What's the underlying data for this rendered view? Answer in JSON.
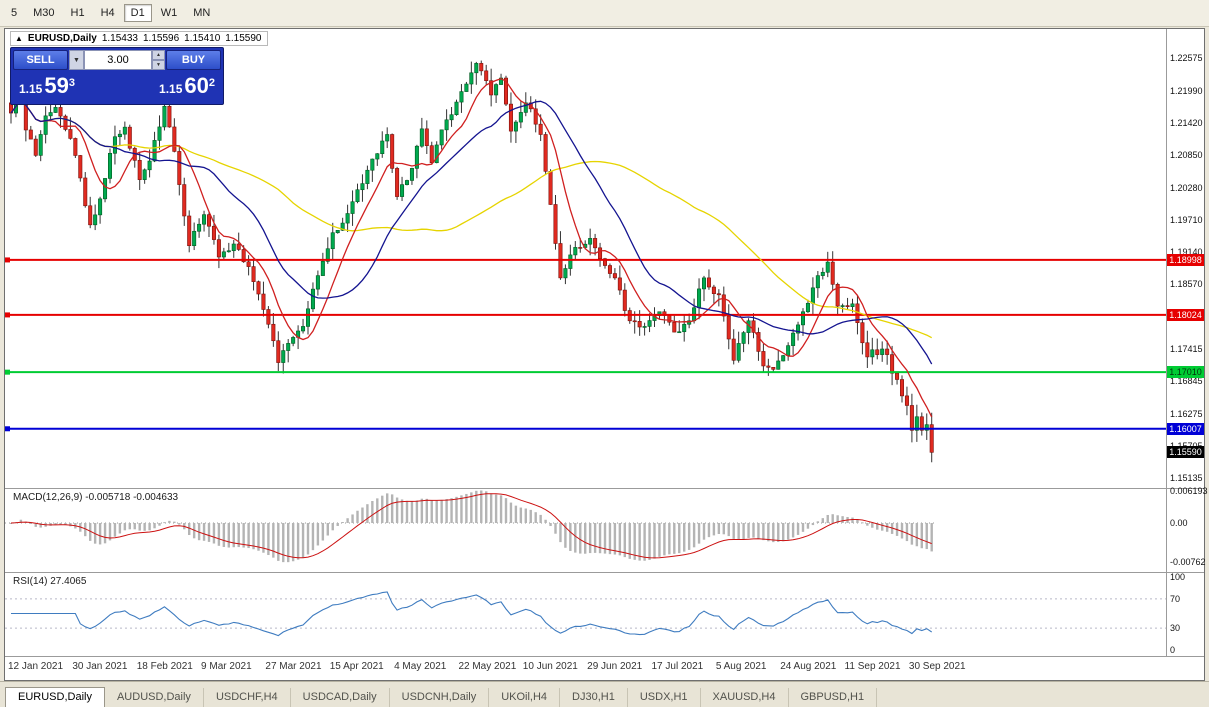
{
  "toolbar": {
    "timeframes": [
      "5",
      "M30",
      "H1",
      "H4",
      "D1",
      "W1",
      "MN"
    ],
    "active": "D1"
  },
  "chart_header": {
    "icon": "▲",
    "symbol": "EURUSD,Daily",
    "open": "1.15433",
    "high": "1.15596",
    "low": "1.15410",
    "close": "1.15590"
  },
  "trade_panel": {
    "sell": "SELL",
    "buy": "BUY",
    "volume": "3.00",
    "bid_prefix": "1.15",
    "bid_big": "59",
    "bid_sup": "3",
    "ask_prefix": "1.15",
    "ask_big": "60",
    "ask_sup": "2"
  },
  "chart_data": {
    "type": "candlestick",
    "symbol": "EURUSD",
    "period": "Daily",
    "price_ticks": [
      "1.22575",
      "1.21990",
      "1.21420",
      "1.20850",
      "1.20280",
      "1.19710",
      "1.19140",
      "1.18570",
      "1.17415",
      "1.16845",
      "1.16275",
      "1.15705",
      "1.15135"
    ],
    "price_tick_values": [
      1.22575,
      1.2199,
      1.2142,
      1.2085,
      1.2028,
      1.1971,
      1.1914,
      1.1857,
      1.17415,
      1.16845,
      1.16275,
      1.15705,
      1.15135
    ],
    "hlines": [
      {
        "price": 1.18998,
        "label": "1.18998",
        "color": "#e60000",
        "text_color": "#ffffff"
      },
      {
        "price": 1.18024,
        "label": "1.18024",
        "color": "#e60000",
        "text_color": "#ffffff"
      },
      {
        "price": 1.1701,
        "label": "1.17010",
        "color": "#00cc33",
        "text_color": "#00330d"
      },
      {
        "price": 1.16007,
        "label": "1.16007",
        "color": "#0000d6",
        "text_color": "#ffffff"
      }
    ],
    "last_price": {
      "price": 1.1559,
      "label": "1.15590",
      "color": "#000000",
      "text_color": "#ffffff"
    },
    "dates": {
      "labels": [
        "12 Jan 2021",
        "30 Jan 2021",
        "18 Feb 2021",
        "9 Mar 2021",
        "27 Mar 2021",
        "15 Apr 2021",
        "4 May 2021",
        "22 May 2021",
        "10 Jun 2021",
        "29 Jun 2021",
        "17 Jul 2021",
        "5 Aug 2021",
        "24 Aug 2021",
        "11 Sep 2021",
        "30 Sep 2021"
      ],
      "days": [
        0,
        13,
        26,
        39,
        52,
        65,
        78,
        91,
        104,
        117,
        130,
        143,
        156,
        169,
        182
      ]
    },
    "bars": 187,
    "anchors": [
      [
        0,
        1.216
      ],
      [
        2,
        1.2222
      ],
      [
        3,
        1.213
      ],
      [
        5,
        1.2085
      ],
      [
        7,
        1.2155
      ],
      [
        9,
        1.217
      ],
      [
        12,
        1.2115
      ],
      [
        14,
        1.2045
      ],
      [
        16,
        1.1962
      ],
      [
        18,
        1.2008
      ],
      [
        21,
        1.2118
      ],
      [
        23,
        1.2135
      ],
      [
        26,
        1.2042
      ],
      [
        28,
        1.2075
      ],
      [
        31,
        1.2172
      ],
      [
        33,
        1.2092
      ],
      [
        36,
        1.1925
      ],
      [
        39,
        1.198
      ],
      [
        42,
        1.1905
      ],
      [
        45,
        1.1928
      ],
      [
        48,
        1.1888
      ],
      [
        51,
        1.1812
      ],
      [
        54,
        1.1718
      ],
      [
        56,
        1.1752
      ],
      [
        59,
        1.1782
      ],
      [
        62,
        1.1872
      ],
      [
        65,
        1.1948
      ],
      [
        68,
        1.1982
      ],
      [
        71,
        1.2035
      ],
      [
        74,
        1.2088
      ],
      [
        76,
        1.2122
      ],
      [
        78,
        1.2012
      ],
      [
        81,
        1.2062
      ],
      [
        83,
        1.2132
      ],
      [
        85,
        1.2072
      ],
      [
        88,
        1.2148
      ],
      [
        91,
        1.2198
      ],
      [
        94,
        1.2248
      ],
      [
        97,
        1.2192
      ],
      [
        99,
        1.2222
      ],
      [
        101,
        1.2128
      ],
      [
        104,
        1.2178
      ],
      [
        107,
        1.2122
      ],
      [
        109,
        1.1998
      ],
      [
        111,
        1.1868
      ],
      [
        114,
        1.1922
      ],
      [
        117,
        1.1938
      ],
      [
        119,
        1.1902
      ],
      [
        122,
        1.1868
      ],
      [
        125,
        1.1792
      ],
      [
        128,
        1.1782
      ],
      [
        131,
        1.1808
      ],
      [
        134,
        1.1772
      ],
      [
        137,
        1.1792
      ],
      [
        140,
        1.1868
      ],
      [
        143,
        1.1838
      ],
      [
        146,
        1.1722
      ],
      [
        149,
        1.1792
      ],
      [
        152,
        1.1712
      ],
      [
        154,
        1.1706
      ],
      [
        157,
        1.1748
      ],
      [
        160,
        1.1808
      ],
      [
        163,
        1.1872
      ],
      [
        165,
        1.1896
      ],
      [
        167,
        1.1818
      ],
      [
        170,
        1.1822
      ],
      [
        173,
        1.1728
      ],
      [
        176,
        1.1742
      ],
      [
        179,
        1.1688
      ],
      [
        181,
        1.1642
      ],
      [
        182,
        1.1598
      ],
      [
        183,
        1.1622
      ],
      [
        184,
        1.1598
      ],
      [
        185,
        1.1608
      ],
      [
        186,
        1.1559
      ]
    ],
    "candle_colors": {
      "up": "#00a94f",
      "up_stroke": "#005a20",
      "down": "#e02a20",
      "down_stroke": "#7a100c",
      "wick": "#333333"
    },
    "moving_averages": [
      {
        "period": 8,
        "color": "#d02020"
      },
      {
        "period": 21,
        "color": "#141490"
      },
      {
        "period": 55,
        "color": "#e6d400"
      }
    ],
    "macd": {
      "label": "MACD(12,26,9) -0.005718 -0.004633",
      "fast": 12,
      "slow": 26,
      "signal": 9,
      "value": -0.005718,
      "signal_value": -0.004633,
      "axis": [
        "0.006193",
        "0.00",
        "-0.00762"
      ],
      "axis_values": [
        0.006193,
        0,
        -0.00762
      ],
      "hist_color": "#b4b4b4",
      "line_color": "#cc1111"
    },
    "rsi": {
      "label": "RSI(14) 27.4065",
      "period": 14,
      "value": 27.4065,
      "axis": [
        "100",
        "70",
        "30",
        "0"
      ],
      "axis_values": [
        100,
        70,
        30,
        0
      ],
      "levels": [
        70,
        30
      ],
      "line_color": "#3f7cc0"
    }
  },
  "tabs": {
    "items": [
      "EURUSD,Daily",
      "AUDUSD,Daily",
      "USDCHF,H4",
      "USDCAD,Daily",
      "USDCNH,Daily",
      "UKOil,H4",
      "DJ30,H1",
      "USDX,H1",
      "XAUUSD,H4",
      "GBPUSD,H1"
    ],
    "active": "EURUSD,Daily"
  }
}
